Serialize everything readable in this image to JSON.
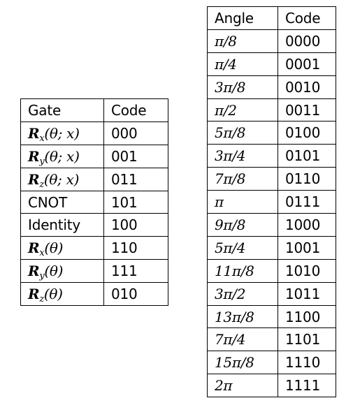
{
  "gate_table": {
    "headers": [
      "Gate",
      "Code"
    ],
    "rows": [
      {
        "gate": "R",
        "sub": "x",
        "args": "(θ; x)",
        "code": "000"
      },
      {
        "gate": "R",
        "sub": "y",
        "args": "(θ; x)",
        "code": "001"
      },
      {
        "gate": "R",
        "sub": "z",
        "args": "(θ; x)",
        "code": "011"
      },
      {
        "gate": "CNOT",
        "sub": null,
        "args": null,
        "code": "101"
      },
      {
        "gate": "Identity",
        "sub": null,
        "args": null,
        "code": "100"
      },
      {
        "gate": "R",
        "sub": "x",
        "args": "(θ)",
        "code": "110"
      },
      {
        "gate": "R",
        "sub": "y",
        "args": "(θ)",
        "code": "111"
      },
      {
        "gate": "R",
        "sub": "z",
        "args": "(θ)",
        "code": "010"
      }
    ]
  },
  "angle_table": {
    "headers": [
      "Angle",
      "Code"
    ],
    "rows": [
      {
        "angle": "π/8",
        "code": "0000"
      },
      {
        "angle": "π/4",
        "code": "0001"
      },
      {
        "angle": "3π/8",
        "code": "0010"
      },
      {
        "angle": "π/2",
        "code": "0011"
      },
      {
        "angle": "5π/8",
        "code": "0100"
      },
      {
        "angle": "3π/4",
        "code": "0101"
      },
      {
        "angle": "7π/8",
        "code": "0110"
      },
      {
        "angle": "π",
        "code": "0111"
      },
      {
        "angle": "9π/8",
        "code": "1000"
      },
      {
        "angle": "5π/4",
        "code": "1001"
      },
      {
        "angle": "11π/8",
        "code": "1010"
      },
      {
        "angle": "3π/2",
        "code": "1011"
      },
      {
        "angle": "13π/8",
        "code": "1100"
      },
      {
        "angle": "7π/4",
        "code": "1101"
      },
      {
        "angle": "15π/8",
        "code": "1110"
      },
      {
        "angle": "2π",
        "code": "1111"
      }
    ]
  }
}
